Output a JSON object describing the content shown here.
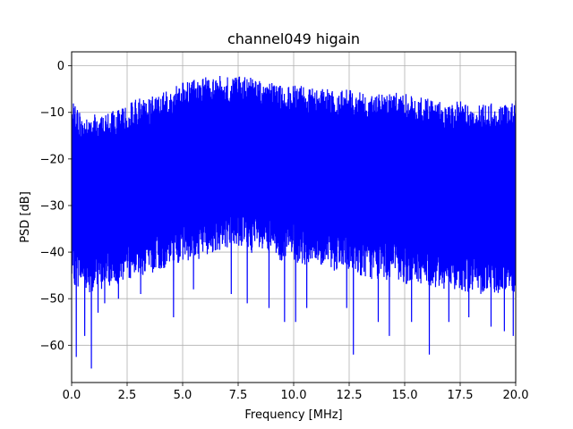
{
  "chart_data": {
    "type": "line",
    "title": "channel049 higain",
    "xlabel": "Frequency [MHz]",
    "ylabel": "PSD [dB]",
    "xlim": [
      0,
      20
    ],
    "ylim": [
      -68,
      3
    ],
    "grid": true,
    "x_ticks": [
      "0.0",
      "2.5",
      "5.0",
      "7.5",
      "10.0",
      "12.5",
      "15.0",
      "17.5",
      "20.0"
    ],
    "y_ticks": [
      "0",
      "−10",
      "−20",
      "−30",
      "−40",
      "−50",
      "−60"
    ],
    "line_color": "#0000ff",
    "upper_envelope": {
      "x": [
        0,
        0.5,
        1,
        1.5,
        2,
        2.5,
        3,
        3.5,
        4,
        4.5,
        5,
        5.5,
        6,
        6.5,
        7,
        7.5,
        8,
        8.5,
        9,
        9.5,
        10,
        10.5,
        11,
        11.5,
        12,
        12.5,
        13,
        13.5,
        14,
        14.5,
        15,
        15.5,
        16,
        16.5,
        17,
        17.5,
        18,
        18.5,
        19,
        19.5,
        20
      ],
      "y": [
        -7,
        -11,
        -10.5,
        -10,
        -9.5,
        -8,
        -7,
        -6.5,
        -6,
        -5,
        -3.5,
        -3,
        -2.5,
        -2.2,
        -2,
        -2,
        -2.5,
        -3,
        -3.5,
        -4,
        -4,
        -4.5,
        -5,
        -5,
        -5.5,
        -5,
        -5.5,
        -6,
        -6,
        -5.5,
        -6,
        -6.5,
        -7,
        -7,
        -7.5,
        -7.5,
        -8,
        -8,
        -8,
        -8.5,
        -6.5
      ]
    },
    "lower_envelope": {
      "x": [
        0,
        0.5,
        1,
        1.5,
        2,
        2.5,
        3,
        3.5,
        4,
        4.5,
        5,
        5.5,
        6,
        6.5,
        7,
        7.5,
        8,
        8.5,
        9,
        9.5,
        10,
        10.5,
        11,
        11.5,
        12,
        12.5,
        13,
        13.5,
        14,
        14.5,
        15,
        15.5,
        16,
        16.5,
        17,
        17.5,
        18,
        18.5,
        19,
        19.5,
        20
      ],
      "y": [
        -43,
        -44,
        -45,
        -44,
        -43,
        -42,
        -41,
        -41,
        -40,
        -39,
        -38,
        -38,
        -37,
        -36,
        -35,
        -35,
        -36,
        -37,
        -37,
        -38,
        -38,
        -39,
        -39,
        -40,
        -40,
        -41,
        -41,
        -42,
        -42,
        -42,
        -43,
        -43,
        -43,
        -44,
        -44,
        -44,
        -45,
        -45,
        -45,
        -45,
        -45
      ]
    },
    "dips": [
      {
        "x": 0.2,
        "y": -62.5
      },
      {
        "x": 0.6,
        "y": -58
      },
      {
        "x": 0.9,
        "y": -65
      },
      {
        "x": 1.2,
        "y": -53
      },
      {
        "x": 1.5,
        "y": -51
      },
      {
        "x": 2.1,
        "y": -50
      },
      {
        "x": 3.1,
        "y": -49
      },
      {
        "x": 4.6,
        "y": -54
      },
      {
        "x": 5.5,
        "y": -48
      },
      {
        "x": 7.2,
        "y": -49
      },
      {
        "x": 7.9,
        "y": -51
      },
      {
        "x": 8.9,
        "y": -52
      },
      {
        "x": 9.6,
        "y": -55
      },
      {
        "x": 10.1,
        "y": -55
      },
      {
        "x": 10.6,
        "y": -52
      },
      {
        "x": 12.4,
        "y": -52
      },
      {
        "x": 12.7,
        "y": -62
      },
      {
        "x": 13.8,
        "y": -55
      },
      {
        "x": 14.3,
        "y": -58
      },
      {
        "x": 15.3,
        "y": -55
      },
      {
        "x": 16.1,
        "y": -62
      },
      {
        "x": 17.0,
        "y": -55
      },
      {
        "x": 17.9,
        "y": -54
      },
      {
        "x": 18.9,
        "y": -56
      },
      {
        "x": 19.5,
        "y": -57
      },
      {
        "x": 19.9,
        "y": -58
      }
    ]
  }
}
